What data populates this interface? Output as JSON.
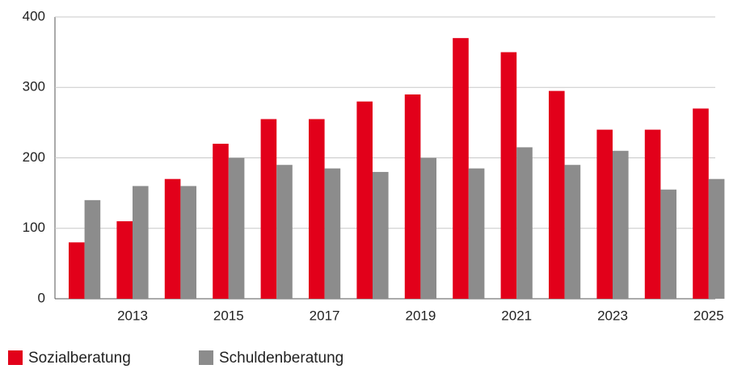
{
  "chart_data": {
    "type": "bar",
    "categories": [
      null,
      "2013",
      null,
      "2015",
      null,
      "2017",
      null,
      "2019",
      null,
      "2021",
      null,
      "2023",
      null,
      "2025"
    ],
    "series": [
      {
        "name": "Sozialberatung",
        "color": "#e2001a",
        "values": [
          80,
          110,
          170,
          220,
          255,
          255,
          280,
          290,
          370,
          350,
          295,
          240,
          240,
          270
        ]
      },
      {
        "name": "Schuldenberatung",
        "color": "#8c8c8c",
        "values": [
          140,
          160,
          160,
          200,
          190,
          185,
          180,
          200,
          185,
          215,
          190,
          210,
          155,
          170
        ]
      }
    ],
    "ylim": [
      0,
      400
    ],
    "yticks": [
      0,
      100,
      200,
      300,
      400
    ],
    "grid": true,
    "legend": "bottom-left"
  }
}
